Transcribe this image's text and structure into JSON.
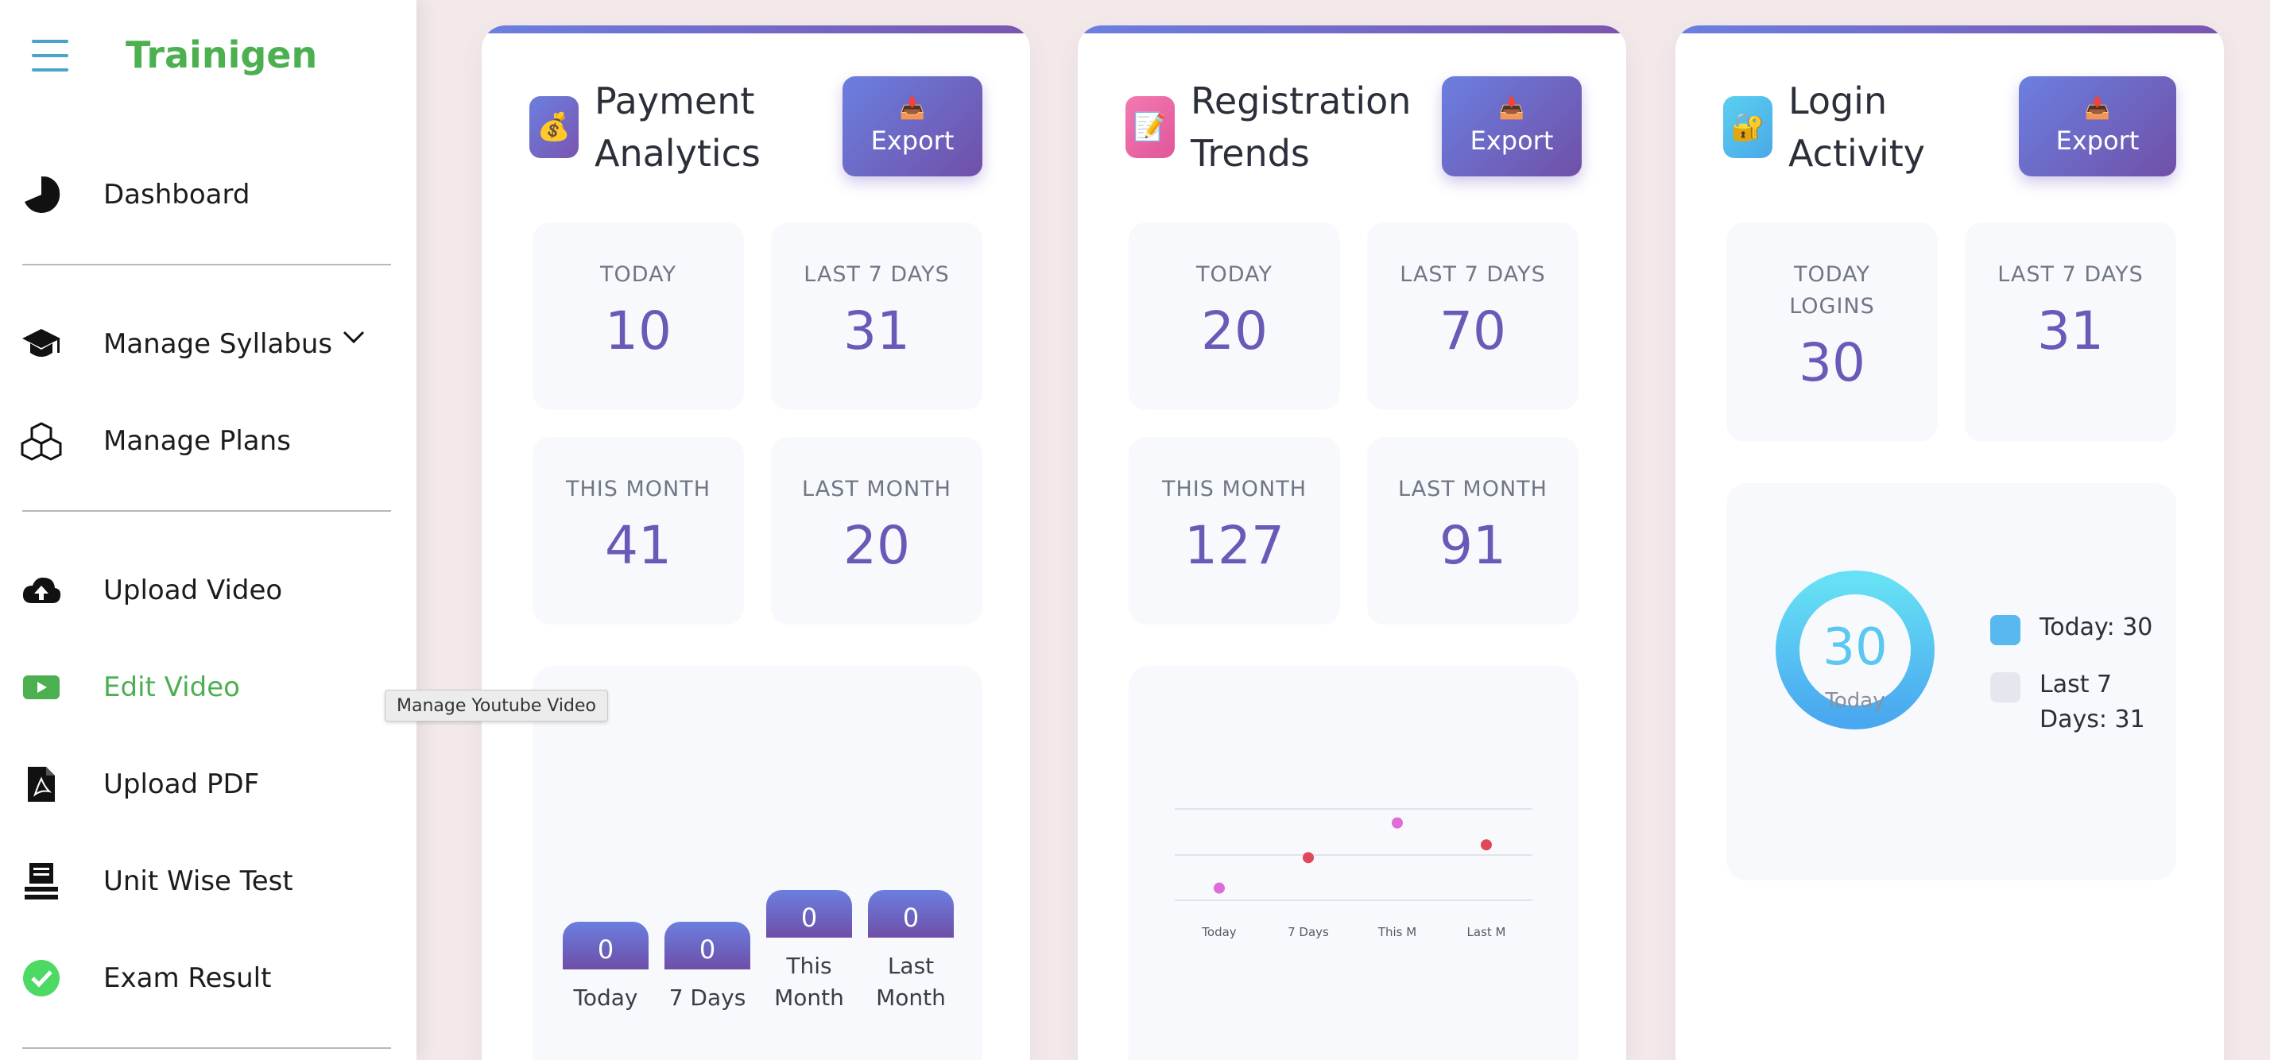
{
  "sidebar": {
    "brand": "Trainigen",
    "items": [
      {
        "label": "Dashboard"
      },
      {
        "label": "Manage Syllabus"
      },
      {
        "label": "Manage Plans"
      },
      {
        "label": "Upload Video"
      },
      {
        "label": "Edit Video"
      },
      {
        "label": "Upload PDF"
      },
      {
        "label": "Unit Wise Test"
      },
      {
        "label": "Exam Result"
      }
    ],
    "active_item": "Edit Video",
    "tooltip": "Manage Youtube Video"
  },
  "colors": {
    "brand_green": "#4caf50",
    "accent_start": "#6b7fe0",
    "accent_end": "#7050a8",
    "stat_value": "#6a5ab8",
    "pink_dot": "#e06cd8",
    "red_dot": "#e0485a",
    "donut_cyan": "#5ad0f0"
  },
  "cards": {
    "payment": {
      "icon": "money-bag-icon",
      "title_line1": "Payment",
      "title_line2": "Analytics",
      "export_label": "Export",
      "stats": [
        {
          "label": "TODAY",
          "value": "10"
        },
        {
          "label": "LAST 7 DAYS",
          "value": "31"
        },
        {
          "label": "THIS MONTH",
          "value": "41"
        },
        {
          "label": "LAST MONTH",
          "value": "20"
        }
      ]
    },
    "registration": {
      "icon": "memo-icon",
      "title_line1": "Registration",
      "title_line2": "Trends",
      "export_label": "Export",
      "stats": [
        {
          "label": "TODAY",
          "value": "20"
        },
        {
          "label": "LAST 7 DAYS",
          "value": "70"
        },
        {
          "label": "THIS MONTH",
          "value": "127"
        },
        {
          "label": "LAST MONTH",
          "value": "91"
        }
      ]
    },
    "login": {
      "icon": "lock-icon",
      "title_line1": "Login",
      "title_line2": "Activity",
      "export_label": "Export",
      "stats": [
        {
          "label_line1": "TODAY",
          "label_line2": "LOGINS",
          "value": "30"
        },
        {
          "label": "LAST 7 DAYS",
          "value": "31"
        }
      ],
      "donut": {
        "value": "30",
        "label": "Today"
      },
      "legend": [
        {
          "label": "Today: 30",
          "color": "#5ab8f0"
        },
        {
          "label_line1": "Last 7",
          "label_line2": "Days: 31",
          "color": "#e4e7ee"
        }
      ]
    }
  },
  "chart_data": [
    {
      "type": "bar",
      "categories": [
        "Today",
        "7 Days",
        "This Month",
        "Last Month"
      ],
      "category_lines": [
        [
          "Today"
        ],
        [
          "7 Days"
        ],
        [
          "This",
          "Month"
        ],
        [
          "Last",
          "Month"
        ]
      ],
      "values": [
        0,
        0,
        0,
        0
      ]
    },
    {
      "type": "scatter",
      "categories": [
        "Today",
        "7 Days",
        "This M",
        "Last M"
      ],
      "values": [
        20,
        70,
        127,
        91
      ],
      "ylim": [
        0,
        150
      ],
      "grid": true
    }
  ]
}
